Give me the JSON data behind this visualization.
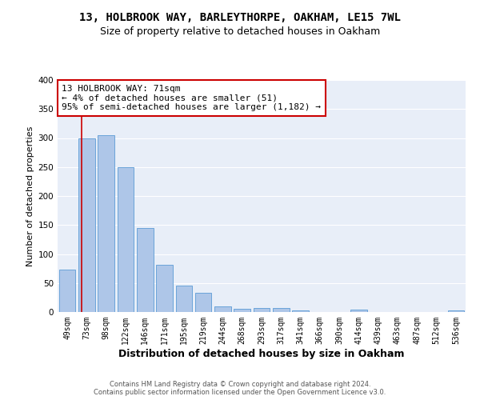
{
  "title": "13, HOLBROOK WAY, BARLEYTHORPE, OAKHAM, LE15 7WL",
  "subtitle": "Size of property relative to detached houses in Oakham",
  "xlabel": "Distribution of detached houses by size in Oakham",
  "ylabel": "Number of detached properties",
  "footer_line1": "Contains HM Land Registry data © Crown copyright and database right 2024.",
  "footer_line2": "Contains public sector information licensed under the Open Government Licence v3.0.",
  "categories": [
    "49sqm",
    "73sqm",
    "98sqm",
    "122sqm",
    "146sqm",
    "171sqm",
    "195sqm",
    "219sqm",
    "244sqm",
    "268sqm",
    "293sqm",
    "317sqm",
    "341sqm",
    "366sqm",
    "390sqm",
    "414sqm",
    "439sqm",
    "463sqm",
    "487sqm",
    "512sqm",
    "536sqm"
  ],
  "values": [
    73,
    300,
    305,
    250,
    145,
    82,
    45,
    33,
    10,
    6,
    7,
    7,
    3,
    0,
    0,
    4,
    0,
    0,
    0,
    0,
    3
  ],
  "bar_color": "#aec6e8",
  "bar_edge_color": "#5b9bd5",
  "property_line_color": "#cc0000",
  "property_line_x": 0.72,
  "annotation_line1": "13 HOLBROOK WAY: 71sqm",
  "annotation_line2": "← 4% of detached houses are smaller (51)",
  "annotation_line3": "95% of semi-detached houses are larger (1,182) →",
  "annotation_box_color": "#ffffff",
  "annotation_box_edge_color": "#cc0000",
  "ylim": [
    0,
    400
  ],
  "yticks": [
    0,
    50,
    100,
    150,
    200,
    250,
    300,
    350,
    400
  ],
  "background_color": "#e8eef8",
  "grid_color": "#ffffff",
  "title_fontsize": 10,
  "subtitle_fontsize": 9,
  "ylabel_fontsize": 8,
  "xlabel_fontsize": 9,
  "tick_fontsize": 7,
  "annotation_fontsize": 8,
  "footer_fontsize": 6
}
